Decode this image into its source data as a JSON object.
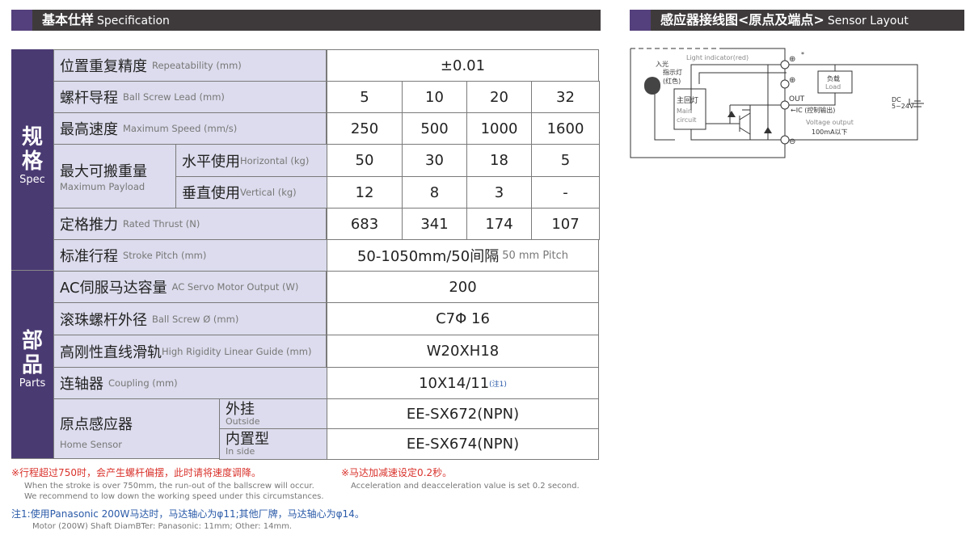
{
  "spec_header": {
    "zh": "基本仕样",
    "en": "Specification"
  },
  "sensor_header": {
    "zh": "感应器接线图<原点及端点>",
    "en": "Sensor Layout"
  },
  "side": {
    "spec_zh": "规格",
    "spec_en": "Spec",
    "parts_zh": "部品",
    "parts_en": "Parts"
  },
  "rows": {
    "repeat": {
      "zh": "位置重复精度",
      "en": "Repeatability (mm)",
      "value": "±0.01"
    },
    "lead": {
      "zh": "螺杆导程",
      "en": "Ball Screw Lead (mm)",
      "values": [
        "5",
        "10",
        "20",
        "32"
      ]
    },
    "speed": {
      "zh": "最高速度",
      "en": "Maximum Speed (mm/s)",
      "values": [
        "250",
        "500",
        "1000",
        "1600"
      ]
    },
    "payload": {
      "zh": "最大可搬重量",
      "en": "Maximum Payload",
      "horizontal": {
        "zh": "水平使用",
        "en": "Horizontal (kg)",
        "values": [
          "50",
          "30",
          "18",
          "5"
        ]
      },
      "vertical": {
        "zh": "垂直使用",
        "en": "Vertical (kg)",
        "values": [
          "12",
          "8",
          "3",
          "-"
        ]
      }
    },
    "thrust": {
      "zh": "定格推力",
      "en": "Rated Thrust (N)",
      "values": [
        "683",
        "341",
        "174",
        "107"
      ]
    },
    "stroke": {
      "zh": "标准行程",
      "en": "Stroke Pitch (mm)",
      "value": "50-1050mm/50间隔",
      "value_en": "50 mm Pitch"
    },
    "motor": {
      "zh": "AC伺服马达容量",
      "en": "AC Servo Motor Output (W)",
      "value": "200"
    },
    "screw": {
      "zh": "滚珠螺杆外径",
      "en": "Ball Screw Ø (mm)",
      "value": "C7Φ 16"
    },
    "guide": {
      "zh": "高刚性直线滑轨",
      "en": "High Rigidity Linear Guide (mm)",
      "value": "W20XH18"
    },
    "coupling": {
      "zh": "连轴器",
      "en": "Coupling (mm)",
      "value": "10X14/11",
      "note": "(注1)"
    },
    "home": {
      "zh": "原点感应器",
      "en": "Home Sensor",
      "outside": {
        "zh": "外挂",
        "en": "Outside",
        "value": "EE-SX672(NPN)"
      },
      "inside": {
        "zh": "内置型",
        "en": "In side",
        "value": "EE-SX674(NPN)"
      }
    }
  },
  "notes": {
    "n1_zh": "※行程超过750时，会产生螺杆偏摆，此时请将速度调降。",
    "n1_en1": "When the stroke is over 750mm, the run-out of the ballscrew will occur.",
    "n1_en2": "We recommend to low down the working speed under this circumstances.",
    "n2_zh": "※马达加减速设定0.2秒。",
    "n2_en": "Acceleration and deacceleration value is set 0.2 second.",
    "n3_zh": "注1:使用Panasonic 200W马达时，马达轴心为φ11;其他厂牌，马达轴心为φ14。",
    "n3_en": "Motor (200W) Shaft DiamBTer: Panasonic: 11mm; Other: 14mm."
  },
  "diagram": {
    "light": "Light indicator(red)",
    "in_light": "入光",
    "indicator": "指示灯",
    "red": "(红色)",
    "main_zh": "主回灯",
    "main_en1": "Main",
    "main_en2": "circuit",
    "load_zh": "负载",
    "load_en": "Load",
    "out": "OUT",
    "ic": "←IC (控制输出)",
    "vout": "Voltage output",
    "ma": "100mA以下",
    "dc": "DC",
    "volt": "5~24V",
    "star": "*"
  },
  "colors": {
    "purple": "#4a3a72",
    "label_bg": "#dcdcee",
    "header": "#3e3a3b",
    "red_note": "#d9322b",
    "blue_note": "#2a5aa8"
  }
}
